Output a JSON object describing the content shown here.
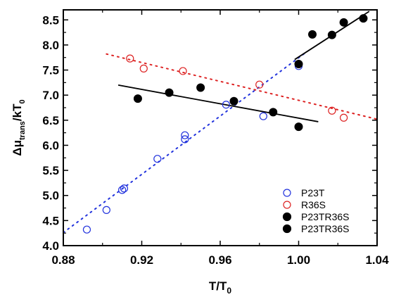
{
  "chart_data": {
    "type": "scatter",
    "xlabel": "T/T",
    "xlabel_sub": "0",
    "ylabel_prefix": "Δμ",
    "ylabel_sub": "trans",
    "ylabel_suffix": "/kT",
    "ylabel_sub2": "0",
    "xlim": [
      0.88,
      1.04
    ],
    "ylim": [
      4.0,
      8.7
    ],
    "xticks": [
      "0.88",
      "0.92",
      "0.96",
      "1.00",
      "1.04"
    ],
    "xtick_values": [
      0.88,
      0.92,
      0.96,
      1.0,
      1.04
    ],
    "yticks": [
      "4.0",
      "4.5",
      "5.0",
      "5.5",
      "6.0",
      "6.5",
      "7.0",
      "7.5",
      "8.0",
      "8.5"
    ],
    "ytick_values": [
      4.0,
      4.5,
      5.0,
      5.5,
      6.0,
      6.5,
      7.0,
      7.5,
      8.0,
      8.5
    ],
    "legend_position": "bottom-right",
    "grid": false,
    "series": [
      {
        "name": "P23T",
        "marker": "open-circle",
        "color": "#2233dd",
        "x": [
          0.892,
          0.902,
          0.91,
          0.911,
          0.928,
          0.942,
          0.942,
          0.963,
          0.982,
          1.0
        ],
        "y": [
          4.32,
          4.71,
          5.11,
          5.14,
          5.73,
          6.12,
          6.2,
          6.81,
          6.58,
          7.58
        ]
      },
      {
        "name": "R36S",
        "marker": "open-circle",
        "color": "#dd2222",
        "x": [
          0.914,
          0.921,
          0.941,
          0.98,
          1.017,
          1.023
        ],
        "y": [
          7.73,
          7.53,
          7.48,
          7.21,
          6.69,
          6.55
        ]
      },
      {
        "name": "P23TR36S",
        "marker": "filled-circle",
        "color": "#000000",
        "x": [
          0.918,
          0.934,
          0.95,
          0.967,
          0.987,
          1.0
        ],
        "y": [
          6.93,
          7.05,
          7.15,
          6.88,
          6.66,
          6.37
        ]
      },
      {
        "name": "P23TR36S",
        "marker": "filled-circle",
        "color": "#000000",
        "x": [
          1.0,
          1.007,
          1.017,
          1.023,
          1.033
        ],
        "y": [
          7.62,
          8.21,
          8.2,
          8.45,
          8.53
        ]
      }
    ],
    "fit_lines": [
      {
        "style": "dotted",
        "color": "#2233dd",
        "x": [
          0.88,
          1.004
        ],
        "y": [
          4.26,
          7.86
        ]
      },
      {
        "style": "dotted",
        "color": "#dd2222",
        "x": [
          0.902,
          1.04
        ],
        "y": [
          7.82,
          6.52
        ]
      },
      {
        "style": "solid",
        "color": "#000000",
        "x": [
          0.908,
          1.01
        ],
        "y": [
          7.2,
          6.47
        ]
      },
      {
        "style": "solid",
        "color": "#000000",
        "x": [
          0.998,
          1.036
        ],
        "y": [
          7.71,
          8.67
        ]
      }
    ]
  }
}
